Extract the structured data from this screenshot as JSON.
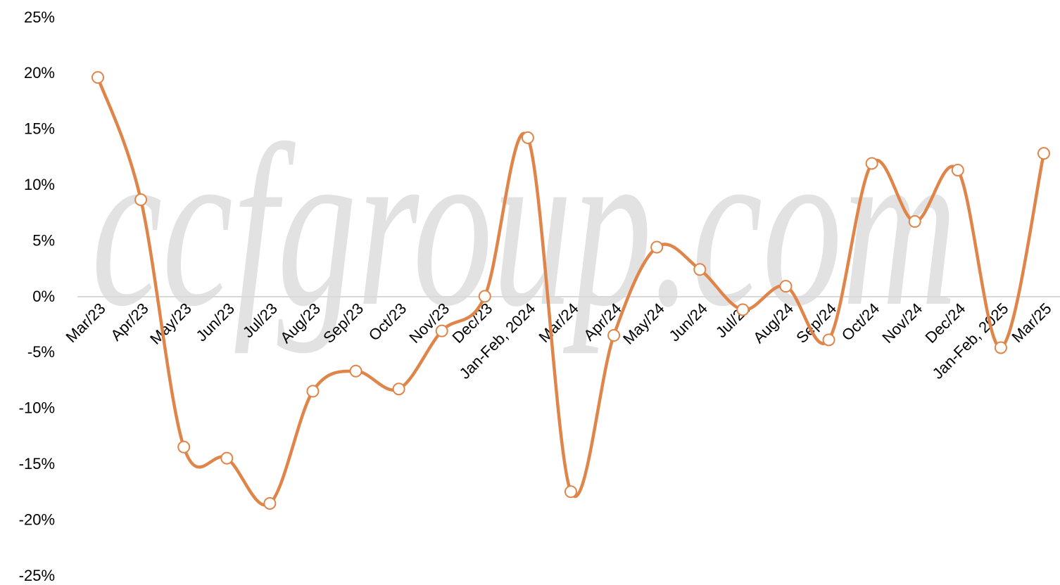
{
  "chart_data": {
    "type": "line",
    "watermark": "ccfgroup.com",
    "categories": [
      "Mar/23",
      "Apr/23",
      "May/23",
      "Jun/23",
      "Jul/23",
      "Aug/23",
      "Sep/23",
      "Oct/23",
      "Nov/23",
      "Dec/23",
      "Jan-Feb, 2024",
      "Mar/24",
      "Apr/24",
      "May/24",
      "Jun/24",
      "Jul/24",
      "Aug/24",
      "Sep/24",
      "Oct/24",
      "Nov/24",
      "Dec/24",
      "Jan-Feb, 2025",
      "Mar/25"
    ],
    "series": [
      {
        "color": "#e0854a",
        "values": [
          19.7,
          8.75,
          -13.4,
          -14.4,
          -18.45,
          -8.4,
          -6.6,
          -8.2,
          -3.0,
          0.1,
          14.3,
          -17.4,
          -3.4,
          4.5,
          2.5,
          -1.1,
          1.0,
          -3.8,
          12.0,
          6.8,
          11.4,
          -4.5,
          12.9
        ]
      }
    ],
    "ylim": [
      -25,
      25
    ],
    "yticks": [
      {
        "value": -25,
        "label": "-25%"
      },
      {
        "value": -20,
        "label": "-20%"
      },
      {
        "value": -15,
        "label": "-15%"
      },
      {
        "value": -10,
        "label": "-10%"
      },
      {
        "value": -5,
        "label": "-5%"
      },
      {
        "value": 0,
        "label": "0%"
      },
      {
        "value": 5,
        "label": "5%"
      },
      {
        "value": 10,
        "label": "10%"
      },
      {
        "value": 15,
        "label": "15%"
      },
      {
        "value": 20,
        "label": "20%"
      },
      {
        "value": 25,
        "label": "25%"
      }
    ],
    "grid": false,
    "smooth": true
  }
}
